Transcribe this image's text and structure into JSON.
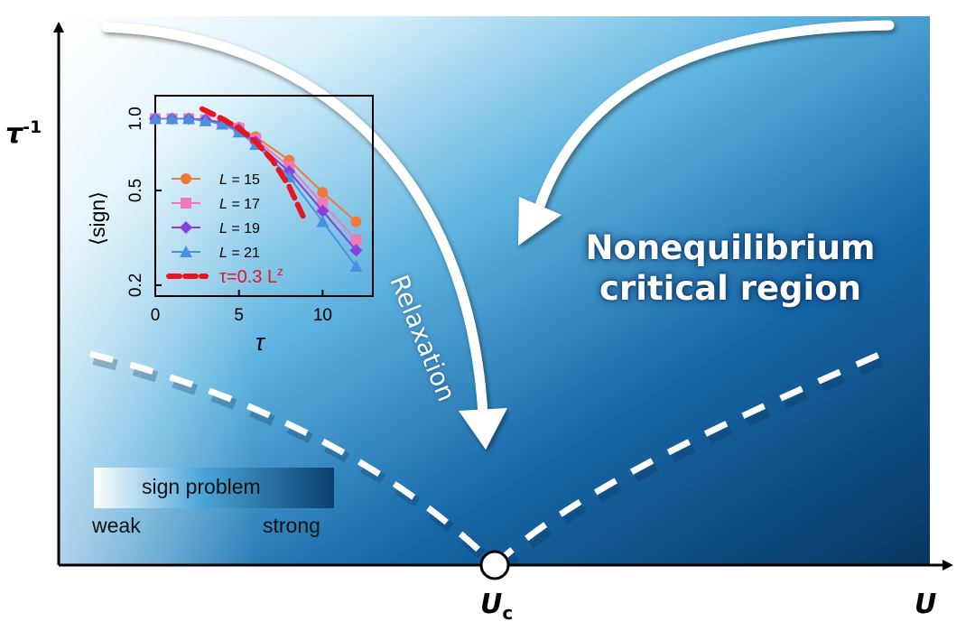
{
  "axes": {
    "y_label": "τ",
    "y_label_sup": "-1",
    "x_label": "U",
    "critical_point_label": "U",
    "critical_point_sub": "c"
  },
  "annotations": {
    "relaxation": "Relaxation",
    "region_line1": "Nonequilibrium",
    "region_line2": "critical region"
  },
  "sign_bar": {
    "title": "sign problem",
    "left": "weak",
    "right": "strong",
    "colors": [
      "#ffffff",
      "#0a3f6e"
    ]
  },
  "colors": {
    "background_light": "#ffffff",
    "background_dark": "#0a3a66",
    "dashed_boundary": "#ffffff",
    "arrows": "#ffffff"
  },
  "chart_data": {
    "type": "scatter",
    "xlabel": "τ",
    "ylabel": "⟨sign⟩",
    "y_scale": "log",
    "xlim": [
      0,
      13
    ],
    "ylim": [
      0.18,
      1.25
    ],
    "x_ticks": [
      0,
      5,
      10
    ],
    "y_ticks": [
      0.2,
      0.5,
      1.0
    ],
    "x_tick_labels": [
      "0",
      "5",
      "10"
    ],
    "y_tick_labels": [
      "0.2",
      "0.5",
      "1.0"
    ],
    "legend_placement": "left",
    "series": [
      {
        "name": "L = 15",
        "L": "15",
        "color": "#f07a3a",
        "marker": "circle",
        "x": [
          0,
          1,
          2,
          3,
          4,
          5,
          6,
          8,
          10,
          12
        ],
        "y": [
          1.0,
          1.0,
          1.0,
          0.99,
          0.97,
          0.92,
          0.84,
          0.67,
          0.49,
          0.37
        ]
      },
      {
        "name": "L = 17",
        "L": "17",
        "color": "#f07ab4",
        "marker": "square",
        "x": [
          0,
          1,
          2,
          3,
          4,
          5,
          6,
          8,
          10,
          12
        ],
        "y": [
          1.0,
          1.0,
          1.0,
          0.99,
          0.96,
          0.91,
          0.82,
          0.63,
          0.44,
          0.31
        ]
      },
      {
        "name": "L = 19",
        "L": "19",
        "color": "#8a3fd8",
        "marker": "diamond",
        "x": [
          0,
          1,
          2,
          3,
          4,
          5,
          6,
          8,
          10,
          12
        ],
        "y": [
          1.0,
          1.0,
          1.0,
          0.99,
          0.96,
          0.9,
          0.8,
          0.6,
          0.41,
          0.28
        ]
      },
      {
        "name": "L = 21",
        "L": "21",
        "color": "#4a90e2",
        "marker": "triangle",
        "x": [
          0,
          1,
          2,
          3,
          4,
          5,
          6,
          8,
          10,
          12
        ],
        "y": [
          1.0,
          1.0,
          1.0,
          0.98,
          0.95,
          0.88,
          0.78,
          0.57,
          0.37,
          0.24
        ]
      }
    ],
    "fit": {
      "name": "τ=0.3 L",
      "label_main": "τ=0.3 L",
      "label_sup": "z",
      "color": "#e8141e",
      "x": [
        2.8,
        4,
        5,
        6,
        7,
        8,
        8.9
      ],
      "y": [
        1.1,
        1.0,
        0.91,
        0.8,
        0.67,
        0.52,
        0.38
      ]
    }
  }
}
